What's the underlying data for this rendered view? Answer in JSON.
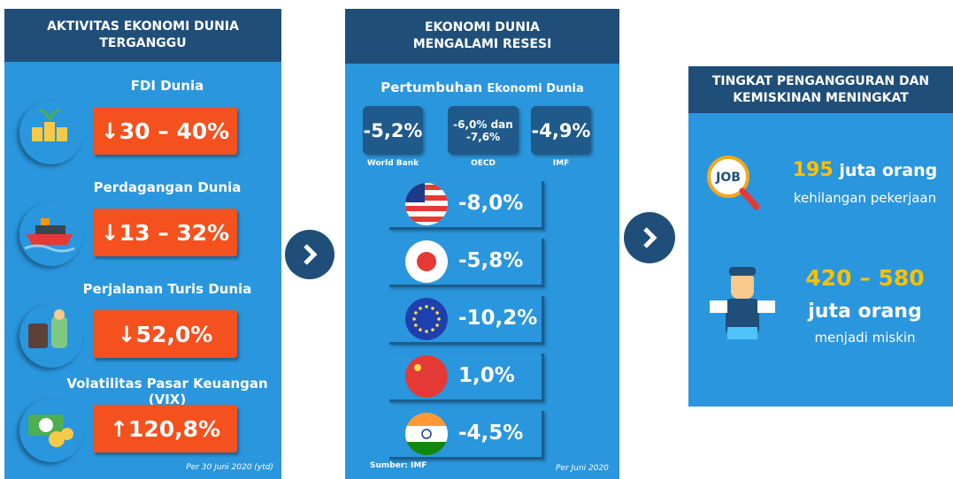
{
  "panels": [
    {
      "title": [
        "AKTIVITAS EKONOMI DUNIA",
        "TERGANGGU"
      ],
      "items": [
        {
          "label": "FDI Dunia",
          "value": "↓30 – 40%"
        },
        {
          "label": "Perdagangan Dunia",
          "value": "↓13 – 32%"
        },
        {
          "label": "Perjalanan Turis Dunia",
          "value": "↓52,0%"
        },
        {
          "label": "Volatilitas Pasar Keuangan (VIX)",
          "value": "↑120,8%"
        }
      ],
      "note": "Per 30 Juni 2020 (ytd)"
    },
    {
      "title": [
        "EKONOMI DUNIA",
        "MENGALAMI RESESI"
      ],
      "subtitle": [
        "Pertumbuhan",
        "Ekonomi Dunia"
      ],
      "estimates": [
        {
          "value": [
            "-5,2%"
          ],
          "source": "World Bank"
        },
        {
          "value": [
            "-6,0% dan",
            "-7,6%"
          ],
          "source": "OECD"
        },
        {
          "value": [
            "-4,9%"
          ],
          "source": "IMF"
        }
      ],
      "countries": [
        "-8,0%",
        "-5,8%",
        "-10,2%",
        "1,0%",
        "-4,5%"
      ],
      "source": "Sumber: IMF",
      "note": "Per Juni 2020"
    },
    {
      "title": [
        "TINGKAT PENGANGGURAN DAN",
        "KEMISKINAN MENINGKAT"
      ],
      "stats": [
        {
          "number": "195",
          "unit": "juta orang",
          "desc": "kehilangan pekerjaan"
        },
        {
          "number": "420 – 580",
          "unit": "juta orang",
          "desc": "menjadi miskin"
        }
      ]
    }
  ]
}
